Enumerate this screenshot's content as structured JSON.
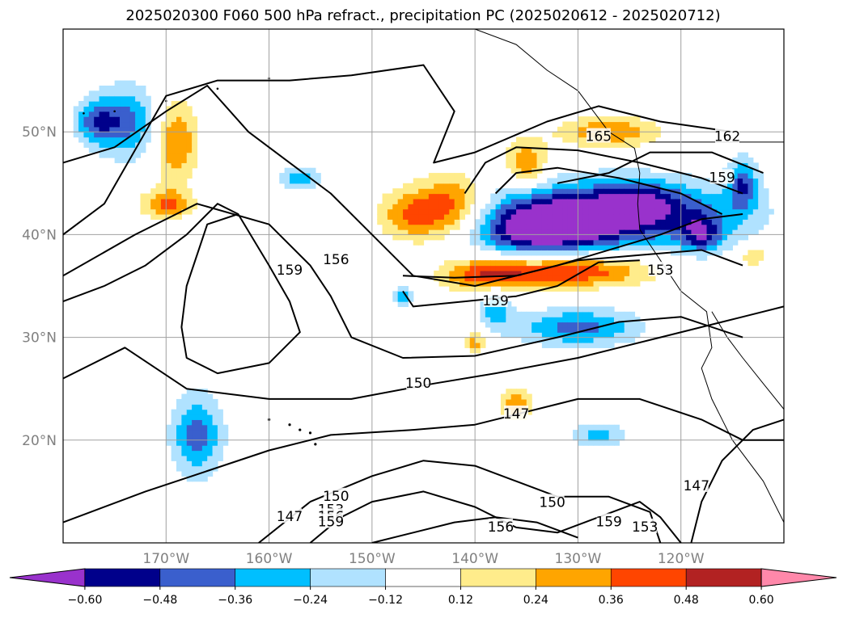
{
  "chart_data": {
    "type": "heatmap",
    "title": "2025020300 F060 500 hPa refract., precipitation PC (2025020612 - 2025020712)",
    "lon_ticks": [
      "170°W",
      "160°W",
      "150°W",
      "140°W",
      "130°W",
      "120°W"
    ],
    "lon_values": [
      -170,
      -160,
      -150,
      -140,
      -130,
      -120
    ],
    "lat_ticks": [
      "50°N",
      "40°N",
      "30°N",
      "20°N"
    ],
    "lat_values": [
      50,
      40,
      30,
      20
    ],
    "xlim": [
      -180,
      -110
    ],
    "ylim": [
      10,
      60
    ],
    "grid": true,
    "colorbar": {
      "orientation": "horizontal",
      "extend": "both",
      "tick_labels": [
        "−0.60",
        "−0.48",
        "−0.36",
        "−0.24",
        "−0.12",
        "0.12",
        "0.24",
        "0.36",
        "0.48",
        "0.60"
      ],
      "levels": [
        -0.6,
        -0.48,
        -0.36,
        -0.24,
        -0.12,
        0.12,
        0.24,
        0.36,
        0.48,
        0.6
      ],
      "colors": [
        "#9932cc",
        "#00008b",
        "#3a5fcd",
        "#00bfff",
        "#b0e2ff",
        "#ffffff",
        "#ffec8b",
        "#ffa500",
        "#ff4500",
        "#b22222",
        "#ff88aa"
      ]
    },
    "contour_labels": [
      {
        "text": "165",
        "lon": -128,
        "lat": 49.5
      },
      {
        "text": "162",
        "lon": -115.5,
        "lat": 49.5
      },
      {
        "text": "159",
        "lon": -116,
        "lat": 45.5
      },
      {
        "text": "156",
        "lon": -153.5,
        "lat": 37.5
      },
      {
        "text": "159",
        "lon": -158,
        "lat": 36.5
      },
      {
        "text": "153",
        "lon": -122,
        "lat": 36.5
      },
      {
        "text": "159",
        "lon": -138,
        "lat": 33.5
      },
      {
        "text": "150",
        "lon": -145.5,
        "lat": 25.5
      },
      {
        "text": "147",
        "lon": -136,
        "lat": 22.5
      },
      {
        "text": "150",
        "lon": -153.5,
        "lat": 14.5
      },
      {
        "text": "153",
        "lon": -154,
        "lat": 13.2
      },
      {
        "text": "156",
        "lon": -154,
        "lat": 12.5
      },
      {
        "text": "159",
        "lon": -154,
        "lat": 12.0
      },
      {
        "text": "147",
        "lon": -158,
        "lat": 12.5
      },
      {
        "text": "150",
        "lon": -132.5,
        "lat": 13.9
      },
      {
        "text": "156",
        "lon": -137.5,
        "lat": 11.5
      },
      {
        "text": "159",
        "lon": -127,
        "lat": 12.0
      },
      {
        "text": "153",
        "lon": -123.5,
        "lat": 11.5
      },
      {
        "text": "147",
        "lon": -118.5,
        "lat": 15.5
      }
    ]
  }
}
